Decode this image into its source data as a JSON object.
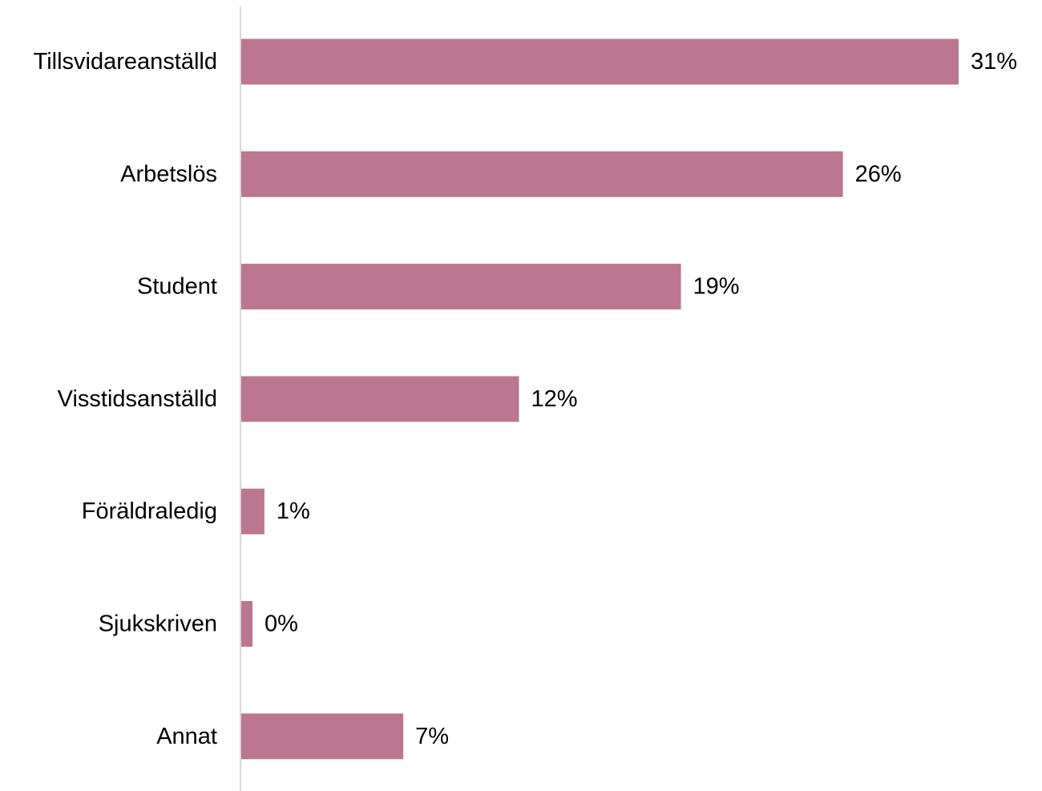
{
  "chart_data": {
    "type": "bar",
    "orientation": "horizontal",
    "categories": [
      "Tillsvidareanställd",
      "Arbetslös",
      "Student",
      "Visstidsanställd",
      "Föräldraledig",
      "Sjukskriven",
      "Annat"
    ],
    "values": [
      31,
      26,
      19,
      12,
      1,
      0,
      7
    ],
    "value_labels": [
      "31%",
      "26%",
      "19%",
      "12%",
      "1%",
      "0%",
      "7%"
    ],
    "unit": "%",
    "bar_color": "#bb778f",
    "axis_color": "#d9d9d9",
    "xlim": [
      0,
      31
    ],
    "grid": false,
    "legend": "none"
  }
}
